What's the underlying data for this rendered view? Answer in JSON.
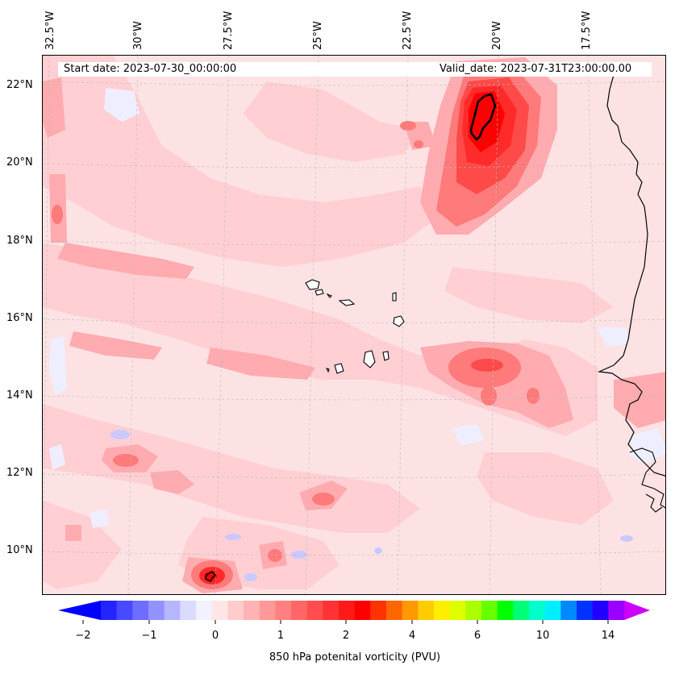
{
  "map": {
    "start_date_label": "Start date: 2023-07-30_00:00:00",
    "valid_date_label": "Valid_date: 2023-07-31T23:00:00.00",
    "longitude_labels": [
      "32.5°W",
      "30°W",
      "27.5°W",
      "25°W",
      "22.5°W",
      "20°W",
      "17.5°W"
    ],
    "latitude_labels": [
      "22°N",
      "20°N",
      "18°N",
      "16°N",
      "14°N",
      "12°N",
      "10°N"
    ],
    "region": "Eastern Atlantic / Cabo Verde",
    "field": "850 hPa potential vorticity"
  },
  "colorbar": {
    "label": "850 hPa potenital vorticity (PVU)",
    "tick_labels": [
      "−2",
      "−1",
      "0",
      "1",
      "2",
      "4",
      "6",
      "10",
      "14"
    ],
    "colors": [
      "#0000ff",
      "#2424ff",
      "#4949ff",
      "#6d6dff",
      "#9292ff",
      "#b6b6ff",
      "#dbdbff",
      "#f1f1ff",
      "#ffe6e6",
      "#ffcccc",
      "#ffb3b3",
      "#ff9999",
      "#ff8080",
      "#ff6666",
      "#ff4d4d",
      "#ff3333",
      "#ff1a1a",
      "#ff0000",
      "#ff3300",
      "#ff6600",
      "#ff9900",
      "#ffcc00",
      "#ffee00",
      "#ddff00",
      "#aaff00",
      "#66ff00",
      "#00ff00",
      "#00ff77",
      "#00ffcc",
      "#00eeff",
      "#0088ff",
      "#0033ff",
      "#2200ff",
      "#9900ff"
    ],
    "extend_min_color": "#0000ff",
    "extend_max_color": "#cc00ff"
  },
  "colors": {
    "background": "#fde2e4",
    "light": "#ffcfd3",
    "medium": "#ffabaf",
    "strong": "#ff7a7a",
    "deep": "#ff2a2a",
    "core": "#ff0000",
    "negative": "#eeeeff",
    "negative2": "#c9c9ff"
  }
}
